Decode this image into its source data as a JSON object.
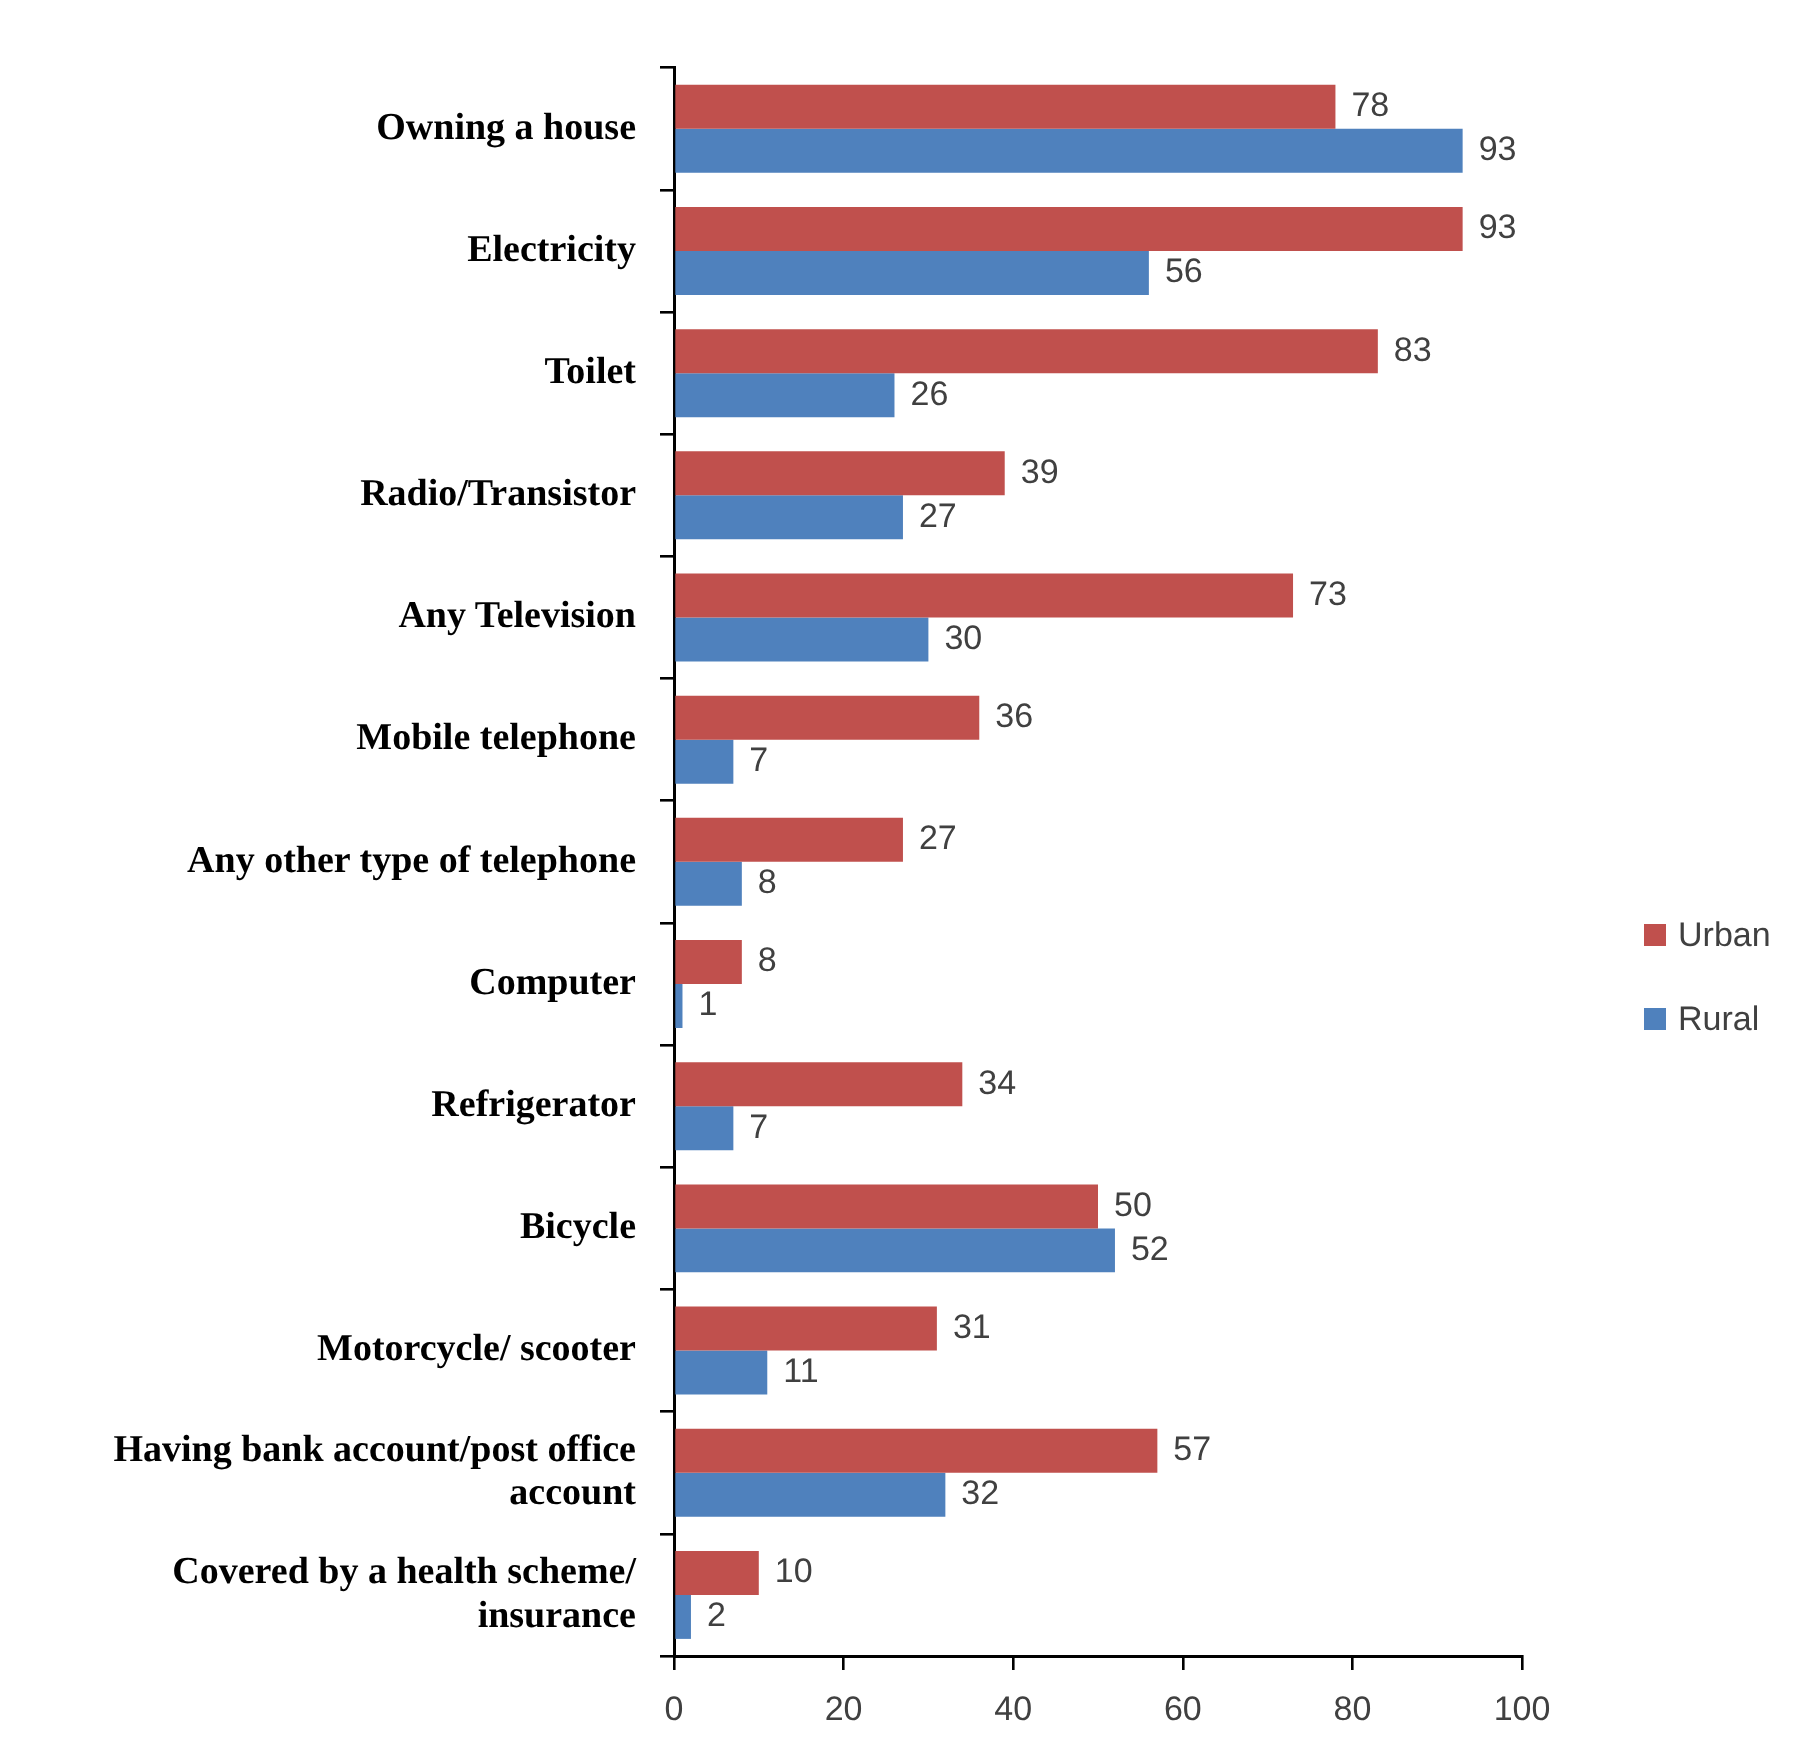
{
  "chart_data": {
    "type": "bar",
    "orientation": "horizontal",
    "categories": [
      "Owning a house",
      "Electricity",
      "Toilet",
      "Radio/Transistor",
      "Any Television",
      "Mobile telephone",
      "Any other type of telephone",
      "Computer",
      "Refrigerator",
      "Bicycle",
      "Motorcycle/ scooter",
      "Having bank account/post office account",
      "Covered by a health scheme/ insurance"
    ],
    "series": [
      {
        "name": "Urban",
        "color": "#c0504d",
        "values": [
          78,
          93,
          83,
          39,
          73,
          36,
          27,
          8,
          34,
          50,
          31,
          57,
          10
        ]
      },
      {
        "name": "Rural",
        "color": "#4f81bd",
        "values": [
          93,
          56,
          26,
          27,
          30,
          7,
          8,
          1,
          7,
          52,
          11,
          32,
          2
        ]
      }
    ],
    "xlim": [
      0,
      100
    ],
    "xticks": [
      0,
      20,
      40,
      60,
      80,
      100
    ],
    "data_labels": true,
    "legend": "right"
  }
}
